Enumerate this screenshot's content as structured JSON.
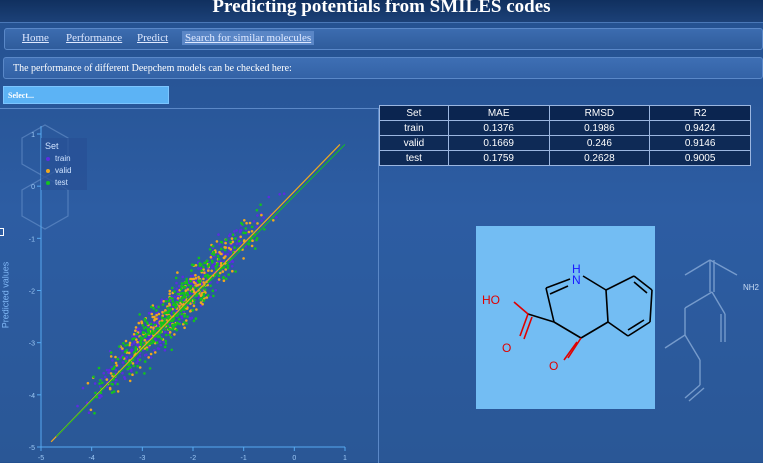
{
  "header": {
    "title": "Predicting potentials from SMILES codes"
  },
  "nav": {
    "items": [
      "Home",
      "Performance",
      "Predict",
      "Search for similar molecules"
    ]
  },
  "info_text": "The performance of different Deepchem models can be checked here:",
  "select": {
    "placeholder": "Select..."
  },
  "table": {
    "headers": [
      "Set",
      "MAE",
      "RMSD",
      "R2"
    ],
    "rows": [
      [
        "train",
        "0.1376",
        "0.1986",
        "0.9424"
      ],
      [
        "valid",
        "0.1669",
        "0.246",
        "0.9146"
      ],
      [
        "test",
        "0.1759",
        "0.2628",
        "0.9005"
      ]
    ]
  },
  "plot": {
    "ylabel": "Predicted values",
    "legend_title": "Set",
    "legend": [
      "train",
      "valid",
      "test"
    ]
  },
  "molecule": {
    "atoms": [
      "H",
      "N",
      "HO",
      "O",
      "O"
    ],
    "bg_label": "NH2"
  },
  "colors": {
    "train": "#5b2ee0",
    "valid": "#f0a81e",
    "test": "#14c21e",
    "accent": "#5cb3f5"
  },
  "chart_data": {
    "type": "scatter",
    "ylabel": "Predicted values",
    "x_ticks": [
      "-5",
      "-4",
      "-3",
      "-2",
      "-1",
      "0",
      "1"
    ],
    "y_ticks": [
      "1",
      "0",
      "-1",
      "-2",
      "-3",
      "-4",
      "-5"
    ],
    "xlim": [
      -5,
      1
    ],
    "ylim": [
      -5,
      1
    ],
    "legend_placement": "top-left",
    "series": [
      {
        "name": "train",
        "trend": "y ≈ x",
        "spread": 0.2
      },
      {
        "name": "valid",
        "trend": "y ≈ x",
        "spread": 0.25
      },
      {
        "name": "test",
        "trend": "y ≈ x",
        "spread": 0.26
      }
    ]
  }
}
